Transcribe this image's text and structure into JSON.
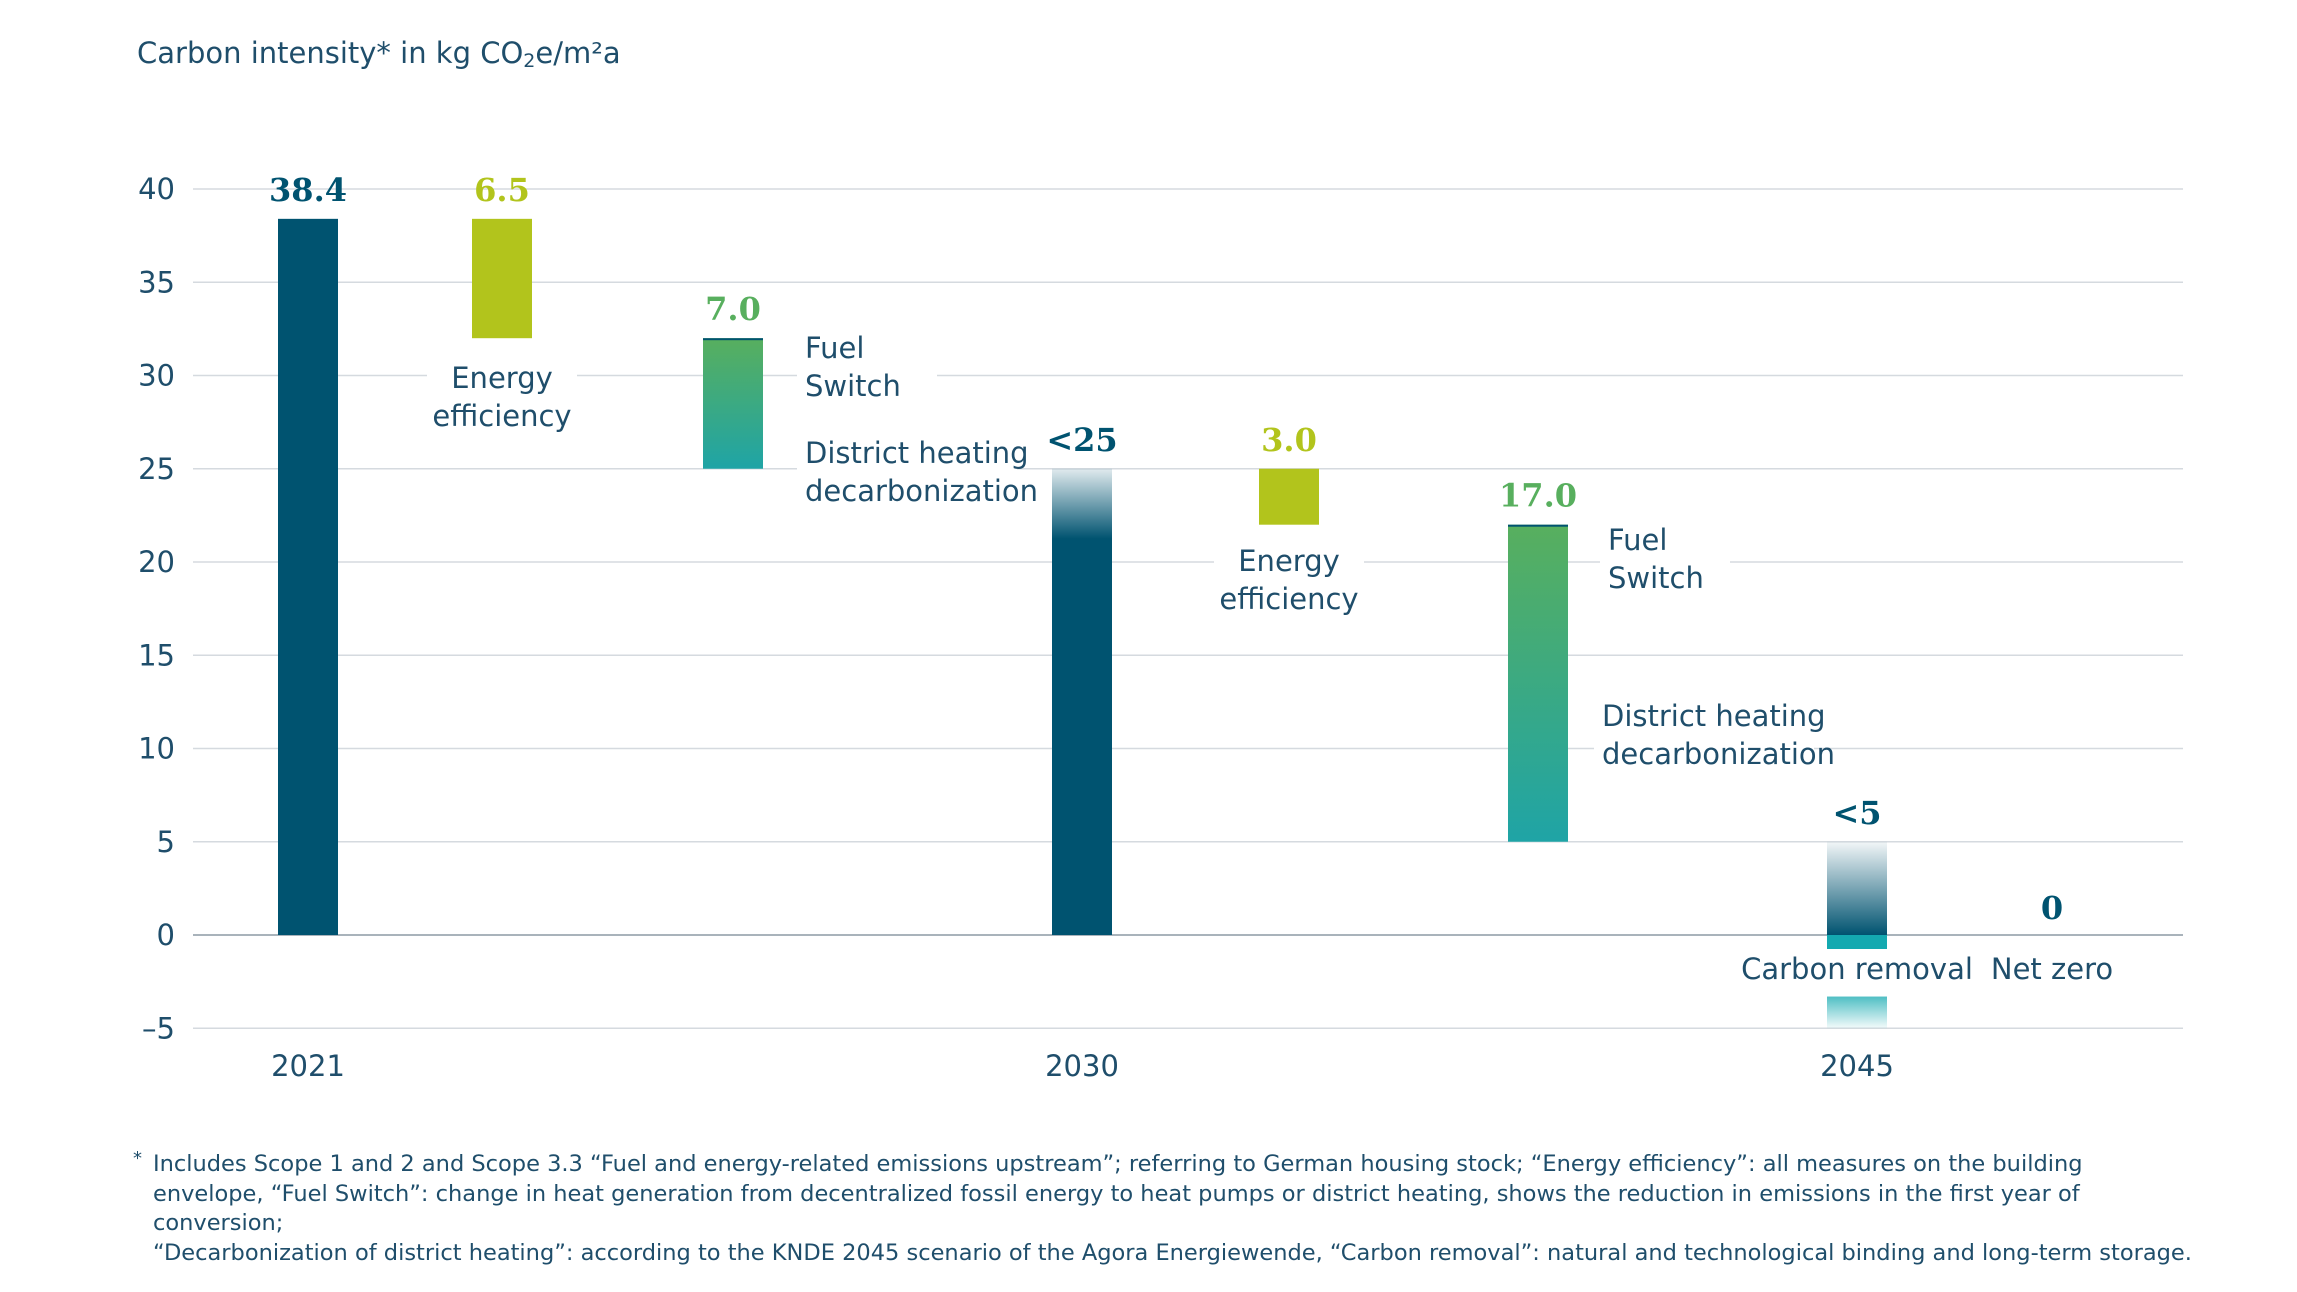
{
  "y_title": {
    "pre": "Carbon intensity* in kg CO",
    "sub": "2",
    "post": "e/m²a"
  },
  "footnote": {
    "mark": "*",
    "lines": [
      "Includes Scope 1 and 2 and Scope 3.3 “Fuel and energy-related emissions upstream”; referring to German housing stock; “Energy efficiency”: all measures on the building",
      "envelope, “Fuel Switch”: change in heat generation from decentralized fossil energy to heat pumps or district heating, shows the reduction in emissions in the first year of conversion;",
      "“Decarbonization of district heating”: according to the KNDE 2045 scenario of the Agora Energiewende, “Carbon removal”: natural and technological binding and long-term storage."
    ]
  },
  "colors": {
    "navy": "#005370",
    "lime": "#b2c41c",
    "green": "#58af5e",
    "teal": "#1fa4a6",
    "carbon_removal": "#14a9b0",
    "axis_text": "#1f4e6b",
    "grid": "#d5dadf"
  },
  "chart_data": {
    "type": "bar",
    "subtype": "waterfall",
    "ylim": [
      -5,
      40
    ],
    "yticks": [
      "40",
      "35",
      "30",
      "25",
      "20",
      "15",
      "10",
      "5",
      "0",
      "–5"
    ],
    "ytick_values": [
      40,
      35,
      30,
      25,
      20,
      15,
      10,
      5,
      0,
      -5
    ],
    "xticks": [
      "2021",
      "2030",
      "2045"
    ],
    "bars": [
      {
        "id": "b2021",
        "kind": "total",
        "low": 0,
        "high": 38.4,
        "value_label": "38.4",
        "color": "navy",
        "tick": "2021"
      },
      {
        "id": "ee1",
        "kind": "reduction",
        "low": 32,
        "high": 38.4,
        "value_label": "6.5",
        "color": "lime",
        "labels": [
          "Energy",
          "efficiency"
        ]
      },
      {
        "id": "fs1",
        "kind": "reduction",
        "low": 25,
        "high": 32,
        "value_label": "7.0",
        "color": "green-teal",
        "labels": [
          "Fuel",
          "Switch"
        ],
        "labels2": [
          "District heating",
          "decarbonization"
        ]
      },
      {
        "id": "b2030",
        "kind": "total",
        "low": 0,
        "high": 25,
        "value_label": "<25",
        "color": "navy-fade",
        "tick": "2030"
      },
      {
        "id": "ee2",
        "kind": "reduction",
        "low": 22,
        "high": 25,
        "value_label": "3.0",
        "color": "lime",
        "labels": [
          "Energy",
          "efficiency"
        ]
      },
      {
        "id": "fs2",
        "kind": "reduction",
        "low": 5,
        "high": 22,
        "value_label": "17.0",
        "color": "green-teal",
        "labels": [
          "Fuel",
          "Switch"
        ],
        "labels2": [
          "District heating",
          "decarbonization"
        ]
      },
      {
        "id": "b2045",
        "kind": "total",
        "low": -5,
        "high": 5,
        "value_label": "<5",
        "color": "navy-fade",
        "tick": "2045",
        "labels": [
          "Carbon removal"
        ]
      },
      {
        "id": "net",
        "kind": "total",
        "low": 0,
        "high": 0,
        "value_label": "0",
        "color": "navy",
        "labels": [
          "Net zero"
        ]
      }
    ]
  }
}
